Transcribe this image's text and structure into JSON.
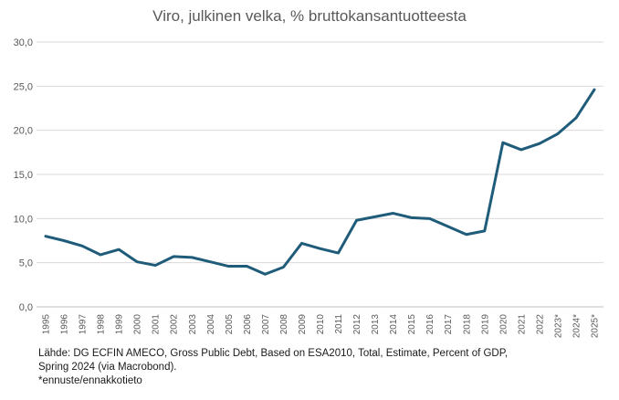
{
  "chart_data": {
    "type": "line",
    "title": "Viro, julkinen velka, % bruttokansantuotteesta",
    "xlabel": "",
    "ylabel": "",
    "ylim": [
      0,
      30
    ],
    "yticks": [
      "0,0",
      "5,0",
      "10,0",
      "15,0",
      "20,0",
      "25,0",
      "30,0"
    ],
    "grid": true,
    "categories": [
      "1995",
      "1996",
      "1997",
      "1998",
      "1999",
      "2000",
      "2001",
      "2002",
      "2003",
      "2004",
      "2005",
      "2006",
      "2007",
      "2008",
      "2009",
      "2010",
      "2011",
      "2012",
      "2013",
      "2014",
      "2015",
      "2016",
      "2017",
      "2018",
      "2019",
      "2020",
      "2021",
      "2022",
      "2023*",
      "2024*",
      "2025*"
    ],
    "series": [
      {
        "color": "#1f5c7a",
        "values": [
          8.0,
          7.5,
          6.9,
          5.9,
          6.5,
          5.1,
          4.7,
          5.7,
          5.6,
          5.1,
          4.6,
          4.6,
          3.7,
          4.5,
          7.2,
          6.6,
          6.1,
          9.8,
          10.2,
          10.6,
          10.1,
          10.0,
          9.1,
          8.2,
          8.6,
          18.6,
          17.8,
          18.5,
          19.6,
          21.4,
          24.6
        ]
      }
    ]
  },
  "source": {
    "line1": "Lähde: DG ECFIN AMECO, Gross Public Debt, Based on ESA2010, Total, Estimate, Percent of GDP,",
    "line2": "Spring 2024 (via Macrobond).",
    "line3": "*ennuste/ennakkotieto"
  }
}
